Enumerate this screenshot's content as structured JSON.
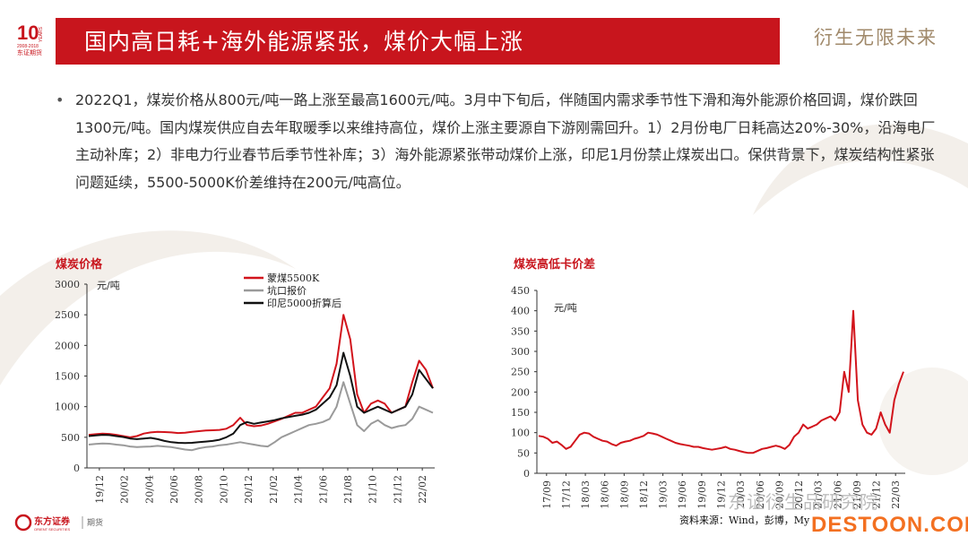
{
  "header": {
    "logo_number": "10",
    "logo_sub": "YEARS",
    "logo_dates": "2008-2018",
    "logo_name": "东证期货",
    "title": "国内高日耗+海外能源紧张，煤价大幅上涨",
    "slogan": "衍生无限未来"
  },
  "body": {
    "bullet": "2022Q1，煤炭价格从800元/吨一路上涨至最高1600元/吨。3月中下旬后，伴随国内需求季节性下滑和海外能源价格回调，煤价跌回1300元/吨。国内煤炭供应自去年取暖季以来维持高位，煤价上涨主要源自下游刚需回升。1）2月份电厂日耗高达20%-30%，沿海电厂主动补库；2）非电力行业春节后季节性补库；3）海外能源紧张带动煤价上涨，印尼1月份禁止煤炭出口。保供背景下，煤炭结构性紧张问题延续，5500-5000K价差维持在200元/吨高位。"
  },
  "colors": {
    "brand_red": "#c8151d",
    "series_red": "#d2141c",
    "series_gray": "#9a9a9a",
    "series_black": "#111111",
    "slogan_gold": "#a0896a"
  },
  "chart_data": [
    {
      "type": "line",
      "title": "煤炭价格",
      "unit_label": "元/吨",
      "ylim": [
        0,
        3000
      ],
      "yticks": [
        0,
        500,
        1000,
        1500,
        2000,
        2500,
        3000
      ],
      "x_ticks": [
        "19/12",
        "20/02",
        "20/04",
        "20/06",
        "20/08",
        "20/10",
        "20/12",
        "21/02",
        "21/04",
        "21/06",
        "21/08",
        "21/10",
        "21/12",
        "22/02"
      ],
      "series": [
        {
          "name": "蒙煤5500K",
          "color": "#d2141c",
          "values": [
            540,
            550,
            560,
            555,
            540,
            520,
            500,
            520,
            560,
            580,
            590,
            585,
            580,
            570,
            575,
            590,
            600,
            610,
            615,
            620,
            640,
            700,
            820,
            700,
            680,
            690,
            720,
            760,
            800,
            850,
            900,
            900,
            950,
            1000,
            1150,
            1300,
            1700,
            2500,
            2100,
            1200,
            900,
            1050,
            1100,
            1050,
            900,
            950,
            1000,
            1400,
            1750,
            1600,
            1300
          ]
        },
        {
          "name": "坑口报价",
          "color": "#9a9a9a",
          "values": [
            380,
            390,
            400,
            395,
            380,
            370,
            350,
            340,
            345,
            350,
            360,
            350,
            340,
            320,
            300,
            290,
            320,
            340,
            350,
            370,
            380,
            400,
            420,
            400,
            380,
            360,
            350,
            420,
            500,
            550,
            600,
            650,
            700,
            720,
            750,
            800,
            1000,
            1400,
            1050,
            700,
            600,
            720,
            780,
            700,
            650,
            680,
            700,
            800,
            1000,
            950,
            900
          ]
        },
        {
          "name": "印尼5000折算后",
          "color": "#111111",
          "values": [
            520,
            530,
            540,
            535,
            520,
            505,
            480,
            470,
            480,
            490,
            470,
            440,
            420,
            410,
            405,
            410,
            420,
            430,
            440,
            460,
            500,
            560,
            700,
            750,
            720,
            740,
            760,
            780,
            810,
            830,
            850,
            870,
            900,
            950,
            1050,
            1150,
            1350,
            1880,
            1500,
            1000,
            900,
            950,
            1000,
            950,
            900,
            950,
            1000,
            1200,
            1600,
            1450,
            1300
          ]
        }
      ]
    },
    {
      "type": "line",
      "title": "煤炭高低卡价差",
      "unit_label": "元/吨",
      "ylim": [
        0,
        450
      ],
      "yticks": [
        0,
        50,
        100,
        150,
        200,
        250,
        300,
        350,
        400,
        450
      ],
      "x_ticks": [
        "17/09",
        "17/12",
        "18/03",
        "18/06",
        "18/09",
        "18/12",
        "19/03",
        "19/06",
        "19/09",
        "19/12",
        "20/03",
        "20/06",
        "20/09",
        "20/12",
        "21/03",
        "21/06",
        "21/09",
        "21/12",
        "22/03"
      ],
      "series": [
        {
          "name": "5500-5000K价差",
          "color": "#d2141c",
          "values": [
            92,
            90,
            85,
            75,
            78,
            70,
            60,
            65,
            80,
            95,
            100,
            98,
            90,
            85,
            80,
            78,
            72,
            68,
            75,
            78,
            80,
            85,
            88,
            92,
            100,
            98,
            95,
            90,
            85,
            80,
            75,
            72,
            70,
            68,
            65,
            65,
            62,
            60,
            58,
            60,
            62,
            65,
            60,
            58,
            55,
            52,
            50,
            50,
            55,
            60,
            62,
            65,
            68,
            65,
            60,
            70,
            90,
            100,
            120,
            110,
            115,
            120,
            130,
            135,
            140,
            130,
            150,
            250,
            200,
            400,
            180,
            120,
            100,
            95,
            110,
            150,
            120,
            100,
            180,
            220,
            250
          ]
        }
      ]
    }
  ],
  "footer": {
    "company": "东方证券",
    "company_en": "ORIENT SECURITIES",
    "company_sub": "期货",
    "source": "资料来源：Wind，彭博，My",
    "watermark_text": "东证衍生品研究院",
    "site_watermark": "DESTOON.COM"
  }
}
